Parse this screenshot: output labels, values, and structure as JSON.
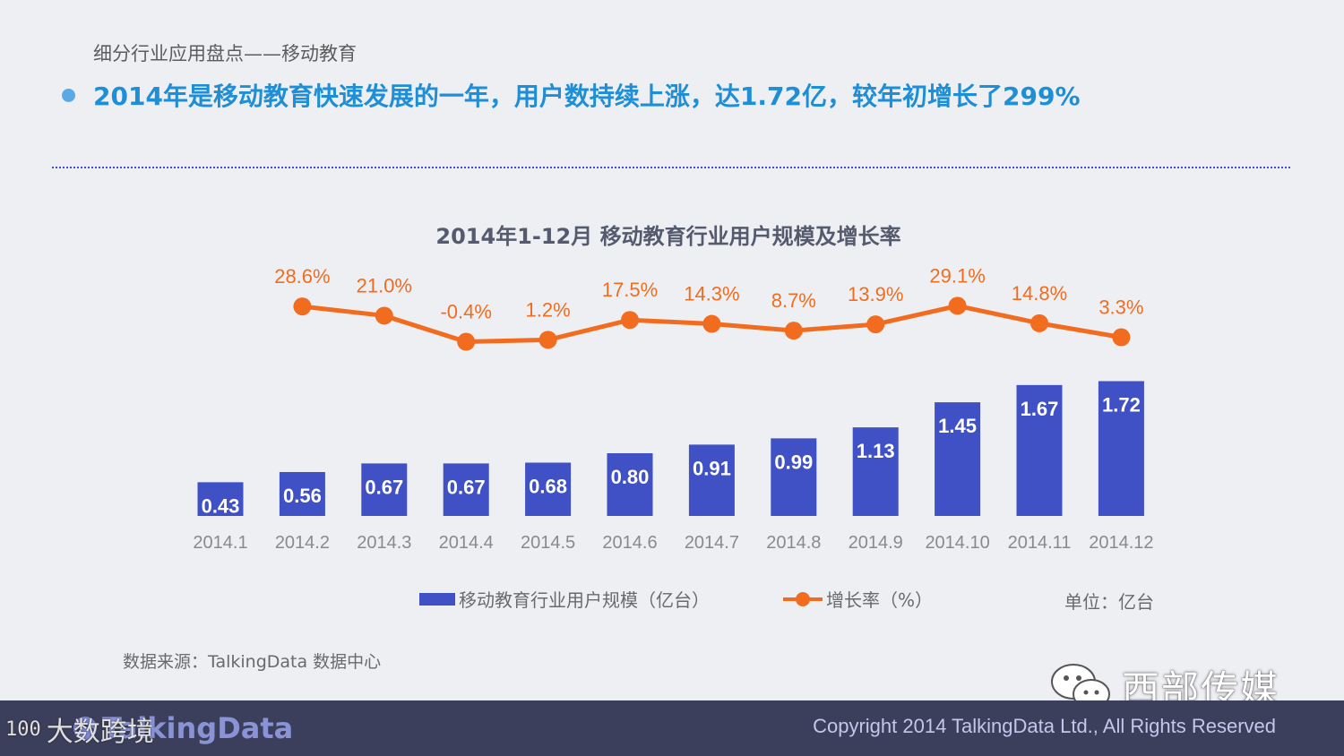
{
  "header": {
    "subtitle": "细分行业应用盘点——移动教育",
    "headline": "2014年是移动教育快速发展的一年，用户数持续上涨，达1.72亿，较年初增长了299%"
  },
  "chart_data": {
    "type": "bar",
    "title": "2014年1-12月 移动教育行业用户规模及增长率",
    "categories": [
      "2014.1",
      "2014.2",
      "2014.3",
      "2014.4",
      "2014.5",
      "2014.6",
      "2014.7",
      "2014.8",
      "2014.9",
      "2014.10",
      "2014.11",
      "2014.12"
    ],
    "series": [
      {
        "name": "移动教育行业用户规模（亿台）",
        "type": "bar",
        "values": [
          0.43,
          0.56,
          0.67,
          0.67,
          0.68,
          0.8,
          0.91,
          0.99,
          1.13,
          1.45,
          1.67,
          1.72
        ],
        "labels": [
          "0.43",
          "0.56",
          "0.67",
          "0.67",
          "0.68",
          "0.80",
          "0.91",
          "0.99",
          "1.13",
          "1.45",
          "1.67",
          "1.72"
        ],
        "color": "#3f51c4"
      },
      {
        "name": "增长率（%）",
        "type": "line",
        "values": [
          null,
          28.6,
          21.0,
          -0.4,
          1.2,
          17.5,
          14.3,
          8.7,
          13.9,
          29.1,
          14.8,
          3.3
        ],
        "labels": [
          null,
          "28.6%",
          "21.0%",
          "-0.4%",
          "1.2%",
          "17.5%",
          "14.3%",
          "8.7%",
          "13.9%",
          "29.1%",
          "14.8%",
          "3.3%"
        ],
        "color": "#f26c1f"
      }
    ],
    "legend_position": "bottom",
    "grid": false,
    "unit_note": "单位：亿台"
  },
  "legend": {
    "bar_label": "移动教育行业用户规模（亿台）",
    "line_label": "增长率（%）"
  },
  "unit": "单位：亿台",
  "source": "数据来源：TalkingData 数据中心",
  "watermark": {
    "account_name": "西部传媒",
    "icon": "wechat-icon"
  },
  "footer": {
    "logo_text": "TalkingData",
    "overlay_number": "100",
    "overlay_text": "大数跨境",
    "copyright": "Copyright 2014 TalkingData Ltd., All Rights Reserved"
  },
  "colors": {
    "bar": "#3f51c4",
    "line": "#f26c1f",
    "headline": "#1e8fd6",
    "footer_bg": "#3c3f5c"
  }
}
